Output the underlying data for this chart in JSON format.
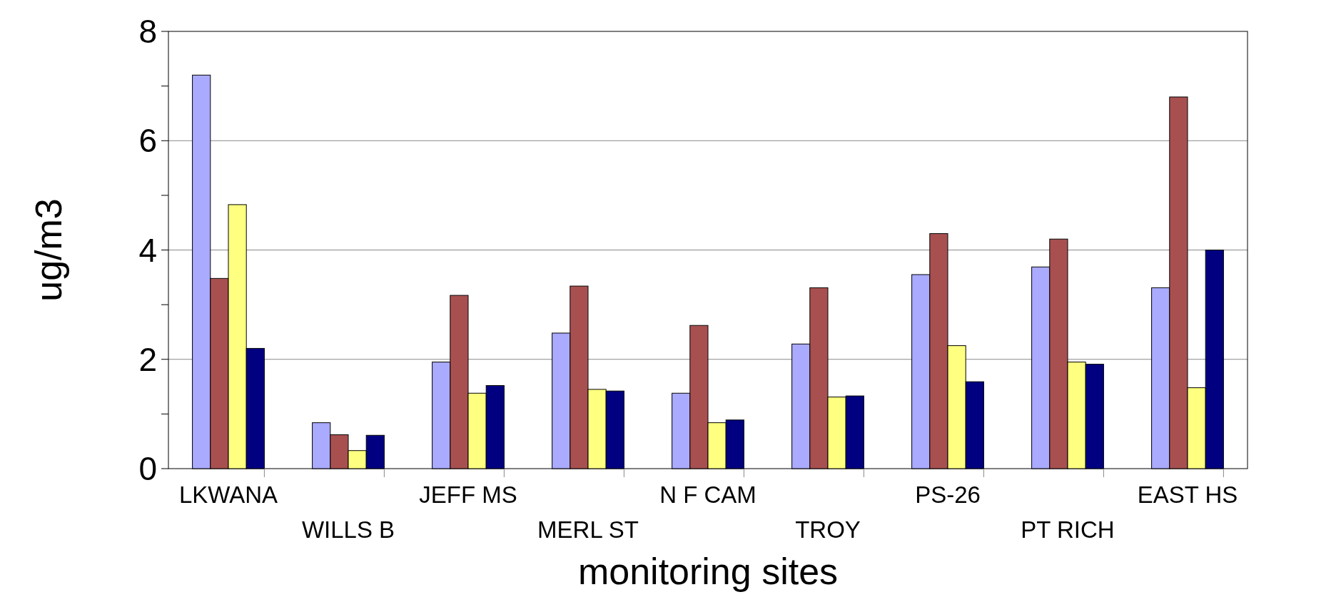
{
  "chart_data": {
    "type": "bar",
    "xlabel": "monitoring sites",
    "ylabel": "ug/m3",
    "categories": [
      "LKWANA",
      "WILLS B",
      "JEFF MS",
      "MERL ST",
      "N F CAM",
      "TROY",
      "PS-26",
      "PT RICH",
      "EAST HS"
    ],
    "series": [
      {
        "color": "#aaaaff",
        "values": [
          7.2,
          0.84,
          1.95,
          2.48,
          1.38,
          2.28,
          3.55,
          3.69,
          3.31
        ]
      },
      {
        "color": "#a85050",
        "values": [
          3.48,
          0.62,
          3.17,
          3.34,
          2.62,
          3.31,
          4.3,
          4.2,
          6.8
        ]
      },
      {
        "color": "#ffff80",
        "values": [
          4.83,
          0.33,
          1.38,
          1.45,
          0.84,
          1.31,
          2.25,
          1.95,
          1.48
        ]
      },
      {
        "color": "#000080",
        "values": [
          2.2,
          0.61,
          1.52,
          1.42,
          0.89,
          1.33,
          1.59,
          1.91,
          4.0
        ]
      }
    ],
    "ylim": [
      0,
      8
    ],
    "yticks": [
      0,
      {
        "value": 1,
        "label": null
      },
      2,
      {
        "value": 3,
        "label": null
      },
      4,
      {
        "value": 5,
        "label": null
      },
      6,
      {
        "value": 7,
        "label": null
      },
      8
    ],
    "grid": "y"
  }
}
